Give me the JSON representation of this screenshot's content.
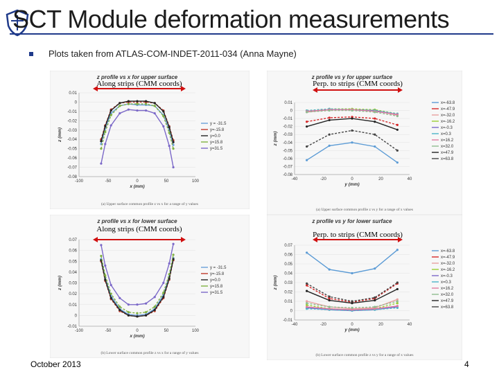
{
  "slide": {
    "title": "SCT Module deformation measurements",
    "bullet": "Plots taken from ATLAS-COM-INDET-2011-034 (Anna Mayne)",
    "date": "October 2013",
    "page": "4",
    "accent_color": "#1f3a8a",
    "logo_icon": "university-crest-icon"
  },
  "chart_data": [
    {
      "type": "line",
      "title": "z profile vs x for upper surface",
      "xlabel": "x (mm)",
      "ylabel": "z (mm)",
      "xlim": [
        -100,
        100
      ],
      "ylim": [
        -0.08,
        0.01
      ],
      "xticks": [
        -100,
        -50,
        0,
        50,
        100
      ],
      "yticks": [
        0.01,
        0,
        -0.01,
        -0.02,
        -0.03,
        -0.04,
        -0.05,
        -0.06,
        -0.07,
        -0.08
      ],
      "caption": "(a) Upper surface common profile z vs x for a range of y values",
      "annotation": "Along strips (CMM coords)",
      "legend_position": "right",
      "x": [
        -62,
        -55,
        -45,
        -30,
        -15,
        0,
        15,
        30,
        45,
        55,
        62
      ],
      "series": [
        {
          "name": "y = -31.5",
          "color": "#6a9fd8",
          "values": [
            -0.045,
            -0.028,
            -0.012,
            -0.004,
            -0.002,
            -0.003,
            -0.003,
            -0.004,
            -0.014,
            -0.03,
            -0.046
          ]
        },
        {
          "name": "y=-15.8",
          "color": "#c0392b",
          "values": [
            -0.04,
            -0.025,
            -0.008,
            -0.001,
            0.0,
            0.0,
            0.0,
            -0.001,
            -0.009,
            -0.026,
            -0.041
          ]
        },
        {
          "name": "y=0.0",
          "color": "#222222",
          "values": [
            -0.042,
            -0.026,
            -0.009,
            -0.001,
            0.001,
            0.001,
            0.001,
            -0.001,
            -0.01,
            -0.027,
            -0.043
          ]
        },
        {
          "name": "y=15.8",
          "color": "#7fb040",
          "values": [
            -0.05,
            -0.032,
            -0.014,
            -0.004,
            -0.002,
            -0.002,
            -0.002,
            -0.004,
            -0.015,
            -0.033,
            -0.05
          ]
        },
        {
          "name": "y=31.5",
          "color": "#7b68c8",
          "values": [
            -0.066,
            -0.045,
            -0.025,
            -0.012,
            -0.008,
            -0.009,
            -0.009,
            -0.012,
            -0.026,
            -0.047,
            -0.07
          ]
        }
      ]
    },
    {
      "type": "line",
      "title": "z profile vs y for upper surface",
      "xlabel": "y (mm)",
      "ylabel": "z (mm)",
      "xlim": [
        -40,
        40
      ],
      "ylim": [
        -0.08,
        0.01
      ],
      "xticks": [
        -40,
        -20,
        0,
        20,
        40
      ],
      "yticks": [
        0.01,
        0,
        -0.01,
        -0.02,
        -0.03,
        -0.04,
        -0.05,
        -0.06,
        -0.07,
        -0.08
      ],
      "caption": "(a) Upper surface common profile z vs y for a range of x values",
      "annotation": "Perp. to strips (CMM coords)",
      "legend_position": "right",
      "x": [
        -31.5,
        -15.8,
        0,
        15.8,
        31.5
      ],
      "series": [
        {
          "name": "x=-63.8",
          "color": "#5b9bd5",
          "values": [
            -0.062,
            -0.044,
            -0.04,
            -0.045,
            -0.065
          ]
        },
        {
          "name": "x=-47.9",
          "color": "#d62728",
          "values": [
            -0.014,
            -0.009,
            -0.008,
            -0.01,
            -0.018
          ]
        },
        {
          "name": "x=-32.0",
          "color": "#e8a0a0",
          "values": [
            -0.002,
            0.001,
            0.001,
            0.0,
            -0.006
          ]
        },
        {
          "name": "x=-16.2",
          "color": "#9acd32",
          "values": [
            0.0,
            0.002,
            0.002,
            0.001,
            -0.004
          ]
        },
        {
          "name": "x=-0.3",
          "color": "#7b68c8",
          "values": [
            -0.001,
            0.001,
            0.001,
            0.0,
            -0.005
          ]
        },
        {
          "name": "x=0.3",
          "color": "#4bb3c8",
          "values": [
            0.0,
            0.002,
            0.001,
            0.0,
            -0.004
          ]
        },
        {
          "name": "x=16.2",
          "color": "#e07aa0",
          "values": [
            -0.001,
            0.001,
            0.001,
            -0.001,
            -0.005
          ]
        },
        {
          "name": "x=32.0",
          "color": "#8fbc8f",
          "values": [
            -0.002,
            0.0,
            0.0,
            -0.002,
            -0.007
          ]
        },
        {
          "name": "x=47.9",
          "color": "#222222",
          "values": [
            -0.02,
            -0.012,
            -0.01,
            -0.014,
            -0.024
          ]
        },
        {
          "name": "x=63.8",
          "color": "#444444",
          "values": [
            -0.045,
            -0.03,
            -0.025,
            -0.03,
            -0.05
          ]
        }
      ]
    },
    {
      "type": "line",
      "title": "z profile vs x for lower surface",
      "xlabel": "x (mm)",
      "ylabel": "z (mm)",
      "xlim": [
        -100,
        100
      ],
      "ylim": [
        -0.01,
        0.07
      ],
      "xticks": [
        -100,
        -50,
        0,
        50,
        100
      ],
      "yticks": [
        0.07,
        0.06,
        0.05,
        0.04,
        0.03,
        0.02,
        0.01,
        0,
        -0.01
      ],
      "caption": "(b) Lower surface common profile z vs x for a range of y values",
      "annotation": "Along strips (CMM coords)",
      "legend_position": "right",
      "x": [
        -62,
        -55,
        -45,
        -30,
        -15,
        0,
        15,
        30,
        45,
        55,
        62
      ],
      "series": [
        {
          "name": "y = -31.5",
          "color": "#6a9fd8",
          "values": [
            0.052,
            0.035,
            0.018,
            0.006,
            0.001,
            0.0,
            0.001,
            0.006,
            0.019,
            0.036,
            0.053
          ]
        },
        {
          "name": "y=-15.8",
          "color": "#c0392b",
          "values": [
            0.05,
            0.032,
            0.015,
            0.004,
            0.0,
            -0.001,
            0.0,
            0.004,
            0.016,
            0.033,
            0.051
          ]
        },
        {
          "name": "y=0.0",
          "color": "#222222",
          "values": [
            0.051,
            0.033,
            0.016,
            0.005,
            0.0,
            -0.001,
            0.0,
            0.005,
            0.017,
            0.034,
            0.052
          ]
        },
        {
          "name": "y=15.8",
          "color": "#7fb040",
          "values": [
            0.055,
            0.037,
            0.02,
            0.008,
            0.003,
            0.002,
            0.003,
            0.008,
            0.021,
            0.038,
            0.056
          ]
        },
        {
          "name": "y=31.5",
          "color": "#7b68c8",
          "values": [
            0.065,
            0.046,
            0.028,
            0.016,
            0.01,
            0.01,
            0.011,
            0.017,
            0.03,
            0.048,
            0.066
          ]
        }
      ]
    },
    {
      "type": "line",
      "title": "z profile vs y for lower surface",
      "xlabel": "y (mm)",
      "ylabel": "z (mm)",
      "xlim": [
        -40,
        40
      ],
      "ylim": [
        -0.01,
        0.07
      ],
      "xticks": [
        -40,
        -20,
        0,
        20,
        40
      ],
      "yticks": [
        0.07,
        0.06,
        0.05,
        0.04,
        0.03,
        0.02,
        0.01,
        0,
        -0.01
      ],
      "caption": "(b) Lower surface common profile z vs y for a range of x values",
      "annotation": "Perp. to strips (CMM coords)",
      "legend_position": "right",
      "x": [
        -31.5,
        -15.8,
        0,
        15.8,
        31.5
      ],
      "series": [
        {
          "name": "x=-63.8",
          "color": "#5b9bd5",
          "values": [
            0.062,
            0.044,
            0.04,
            0.045,
            0.065
          ]
        },
        {
          "name": "x=-47.9",
          "color": "#d62728",
          "values": [
            0.027,
            0.013,
            0.009,
            0.013,
            0.029
          ]
        },
        {
          "name": "x=-32.0",
          "color": "#e8a0a0",
          "values": [
            0.01,
            0.004,
            0.002,
            0.003,
            0.012
          ]
        },
        {
          "name": "x=-16.2",
          "color": "#9acd32",
          "values": [
            0.006,
            0.002,
            0.001,
            0.002,
            0.008
          ]
        },
        {
          "name": "x=-0.3",
          "color": "#7b68c8",
          "values": [
            0.003,
            0.001,
            0.0,
            0.001,
            0.004
          ]
        },
        {
          "name": "x=0.3",
          "color": "#4bb3c8",
          "values": [
            0.002,
            0.001,
            0.0,
            0.001,
            0.003
          ]
        },
        {
          "name": "x=16.2",
          "color": "#e07aa0",
          "values": [
            0.004,
            0.002,
            0.001,
            0.002,
            0.005
          ]
        },
        {
          "name": "x=32.0",
          "color": "#8fbc8f",
          "values": [
            0.008,
            0.004,
            0.003,
            0.004,
            0.01
          ]
        },
        {
          "name": "x=47.9",
          "color": "#222222",
          "values": [
            0.021,
            0.011,
            0.008,
            0.011,
            0.023
          ]
        },
        {
          "name": "x=63.8",
          "color": "#444444",
          "values": [
            0.029,
            0.015,
            0.01,
            0.014,
            0.03
          ]
        }
      ]
    }
  ]
}
